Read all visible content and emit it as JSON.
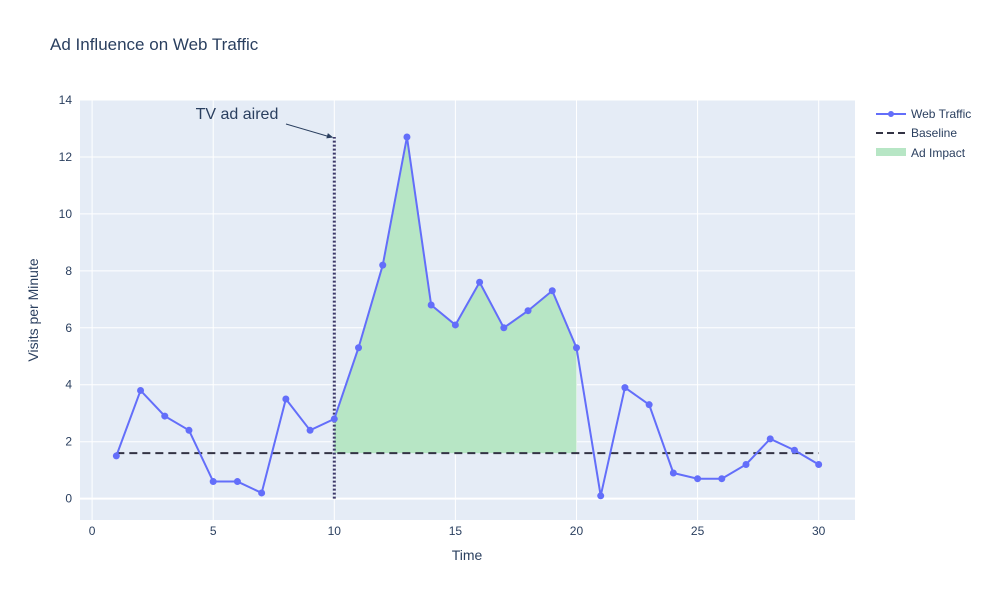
{
  "chart_data": {
    "type": "line",
    "title": "Ad Influence on Web Traffic",
    "xlabel": "Time",
    "ylabel": "Visits per Minute",
    "xlim": [
      -0.5,
      31.5
    ],
    "ylim": [
      -0.75,
      14
    ],
    "x_ticks": [
      0,
      5,
      10,
      15,
      20,
      25,
      30
    ],
    "y_ticks": [
      0,
      2,
      4,
      6,
      8,
      10,
      12,
      14
    ],
    "grid": true,
    "legend_position": "top-right",
    "series": [
      {
        "name": "Web Traffic",
        "color": "#636efa",
        "x": [
          1,
          2,
          3,
          4,
          5,
          6,
          7,
          8,
          9,
          10,
          11,
          12,
          13,
          14,
          15,
          16,
          17,
          18,
          19,
          20,
          21,
          22,
          23,
          24,
          25,
          26,
          27,
          28,
          29,
          30
        ],
        "values": [
          1.5,
          3.8,
          2.9,
          2.4,
          0.6,
          0.6,
          0.2,
          3.5,
          2.4,
          2.8,
          5.3,
          8.2,
          12.7,
          6.8,
          6.1,
          7.6,
          6.0,
          6.6,
          7.3,
          5.3,
          0.1,
          3.9,
          3.3,
          0.9,
          0.7,
          0.7,
          1.2,
          2.1,
          1.7,
          1.2
        ]
      },
      {
        "name": "Baseline",
        "color": "#333344",
        "x": [
          1,
          30
        ],
        "values": [
          1.6,
          1.6
        ]
      },
      {
        "name": "Ad Impact",
        "color": "#b7e6c5",
        "x": [
          10,
          11,
          12,
          13,
          14,
          15,
          16,
          17,
          18,
          19,
          20
        ],
        "values": [
          2.8,
          5.3,
          8.2,
          12.7,
          6.8,
          6.1,
          7.6,
          6.0,
          6.6,
          7.3,
          5.3
        ],
        "base": 1.6
      }
    ],
    "ad_marker": {
      "x": 10,
      "y_top": 12.7,
      "color": "#3d3a6b"
    },
    "annotation": {
      "text": "TV ad aired",
      "x": 10,
      "y": 12.7
    }
  }
}
